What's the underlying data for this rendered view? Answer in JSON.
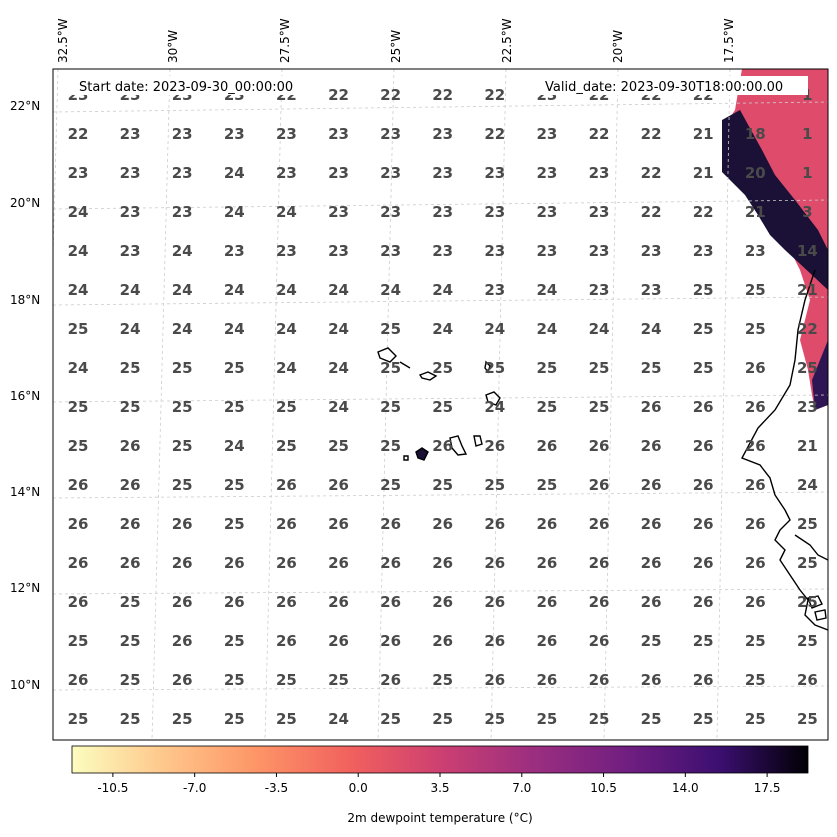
{
  "map": {
    "start_label": "Start date: 2023-09-30_00:00:00",
    "valid_label": "Valid_date: 2023-09-30T18:00:00.00",
    "lon_labels": [
      "32.5°W",
      "30°W",
      "27.5°W",
      "25°W",
      "22.5°W",
      "20°W",
      "17.5°W"
    ],
    "lat_labels": [
      "22°N",
      "20°N",
      "18°N",
      "16°N",
      "14°N",
      "12°N",
      "10°N"
    ],
    "grid": true,
    "grid_values": [
      [
        "23",
        "23",
        "23",
        "23",
        "22",
        "22",
        "22",
        "22",
        "22",
        "23",
        "22",
        "22",
        "22",
        "",
        "1"
      ],
      [
        "22",
        "23",
        "23",
        "23",
        "23",
        "23",
        "23",
        "23",
        "22",
        "23",
        "22",
        "22",
        "21",
        "18",
        "1"
      ],
      [
        "23",
        "23",
        "23",
        "24",
        "23",
        "23",
        "23",
        "23",
        "23",
        "23",
        "23",
        "22",
        "21",
        "20",
        "1"
      ],
      [
        "24",
        "23",
        "23",
        "24",
        "24",
        "23",
        "23",
        "23",
        "23",
        "23",
        "23",
        "22",
        "22",
        "21",
        "3"
      ],
      [
        "24",
        "23",
        "24",
        "23",
        "23",
        "23",
        "23",
        "23",
        "23",
        "23",
        "23",
        "23",
        "23",
        "23",
        "14"
      ],
      [
        "24",
        "24",
        "24",
        "24",
        "24",
        "24",
        "24",
        "24",
        "23",
        "24",
        "23",
        "23",
        "25",
        "25",
        "21"
      ],
      [
        "25",
        "24",
        "24",
        "24",
        "24",
        "24",
        "25",
        "24",
        "24",
        "24",
        "24",
        "24",
        "25",
        "25",
        "22"
      ],
      [
        "24",
        "25",
        "25",
        "25",
        "24",
        "24",
        "25",
        "25",
        "25",
        "25",
        "25",
        "25",
        "25",
        "26",
        "25"
      ],
      [
        "25",
        "25",
        "25",
        "25",
        "25",
        "24",
        "25",
        "25",
        "24",
        "25",
        "25",
        "26",
        "26",
        "26",
        "23"
      ],
      [
        "25",
        "26",
        "25",
        "24",
        "25",
        "25",
        "25",
        "26",
        "26",
        "26",
        "26",
        "26",
        "26",
        "26",
        "21"
      ],
      [
        "26",
        "26",
        "25",
        "25",
        "26",
        "26",
        "25",
        "25",
        "25",
        "25",
        "26",
        "26",
        "26",
        "26",
        "24"
      ],
      [
        "26",
        "26",
        "26",
        "25",
        "26",
        "26",
        "26",
        "26",
        "26",
        "26",
        "26",
        "26",
        "26",
        "26",
        "25"
      ],
      [
        "26",
        "26",
        "26",
        "26",
        "26",
        "26",
        "26",
        "26",
        "26",
        "26",
        "26",
        "26",
        "26",
        "26",
        "25"
      ],
      [
        "26",
        "25",
        "26",
        "26",
        "26",
        "26",
        "26",
        "26",
        "26",
        "26",
        "26",
        "26",
        "26",
        "26",
        "25"
      ],
      [
        "25",
        "25",
        "26",
        "25",
        "26",
        "26",
        "26",
        "26",
        "26",
        "26",
        "26",
        "25",
        "25",
        "25",
        "25"
      ],
      [
        "26",
        "25",
        "26",
        "25",
        "25",
        "25",
        "26",
        "25",
        "26",
        "26",
        "26",
        "26",
        "26",
        "25",
        "26"
      ],
      [
        "25",
        "25",
        "25",
        "25",
        "25",
        "24",
        "25",
        "25",
        "25",
        "25",
        "25",
        "25",
        "25",
        "25",
        "25"
      ]
    ]
  },
  "colorbar": {
    "label": "2m dewpoint temperature ($^\\circ$C)",
    "label_display": "2m dewpoint temperature (°C)",
    "colormap": "magma_r",
    "range": [
      -12.25,
      19.25
    ],
    "ticks": [
      "-10.5",
      "-7.0",
      "-3.5",
      "0.0",
      "3.5",
      "7.0",
      "10.5",
      "14.0",
      "17.5"
    ]
  },
  "colors": {
    "land_shading": "#df4c6b",
    "land_deep": "#1b1035",
    "coastline": "#000000",
    "value_text": "#4a4a4a"
  }
}
